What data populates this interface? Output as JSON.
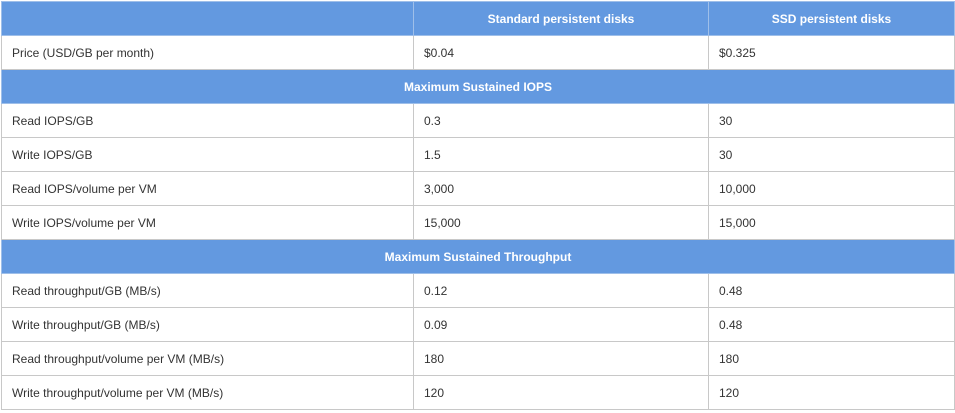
{
  "header": {
    "col1": "",
    "col2": "Standard persistent disks",
    "col3": "SSD persistent disks"
  },
  "rows": [
    {
      "type": "data",
      "label": "Price (USD/GB per month)",
      "standard": "$0.04",
      "ssd": "$0.325"
    },
    {
      "type": "section",
      "label": "Maximum Sustained IOPS"
    },
    {
      "type": "data",
      "label": "Read IOPS/GB",
      "standard": "0.3",
      "ssd": "30"
    },
    {
      "type": "data",
      "label": "Write IOPS/GB",
      "standard": "1.5",
      "ssd": "30"
    },
    {
      "type": "data",
      "label": "Read IOPS/volume per VM",
      "standard": "3,000",
      "ssd": "10,000"
    },
    {
      "type": "data",
      "label": "Write IOPS/volume per VM",
      "standard": "15,000",
      "ssd": "15,000"
    },
    {
      "type": "section",
      "label": "Maximum Sustained Throughput"
    },
    {
      "type": "data",
      "label": "Read throughput/GB (MB/s)",
      "standard": "0.12",
      "ssd": "0.48"
    },
    {
      "type": "data",
      "label": "Write throughput/GB (MB/s)",
      "standard": "0.09",
      "ssd": "0.48"
    },
    {
      "type": "data",
      "label": "Read throughput/volume per VM (MB/s)",
      "standard": "180",
      "ssd": "180"
    },
    {
      "type": "data",
      "label": "Write throughput/volume per VM (MB/s)",
      "standard": "120",
      "ssd": "120"
    }
  ],
  "colors": {
    "header_bg": "#6399e0",
    "header_text": "#ffffff",
    "border": "#c8c8c8",
    "body_text": "#333333"
  }
}
